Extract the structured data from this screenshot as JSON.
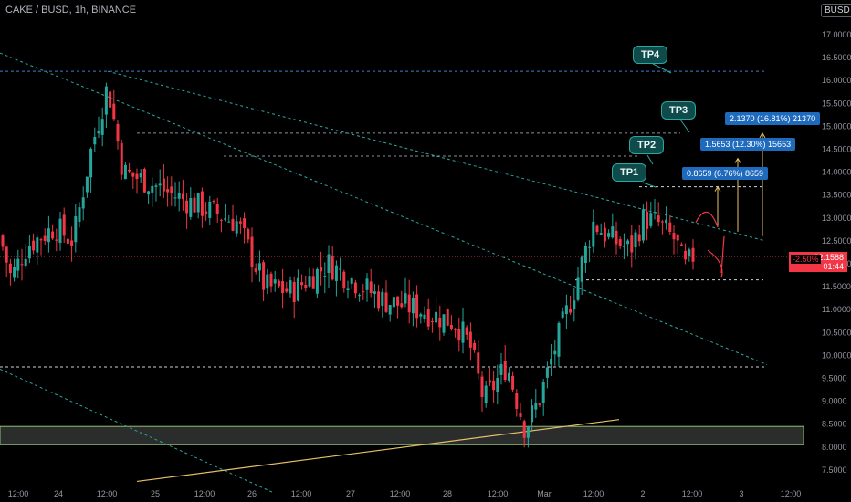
{
  "header": {
    "symbol_title": "CAKE / BUSD, 1h, BINANCE",
    "currency_badge": "BUSD"
  },
  "price_tag": {
    "price": "12.1588",
    "countdown": "01:44",
    "change": "-2.50%"
  },
  "targets": [
    {
      "label": "TP1",
      "level": 13.68
    },
    {
      "label": "TP2",
      "level": 14.35
    },
    {
      "label": "TP3",
      "level": 14.85
    },
    {
      "label": "TP4",
      "level": 16.2
    }
  ],
  "measurements": [
    {
      "text": "0.8659 (6.76%) 8659"
    },
    {
      "text": "1.5653 (12.30%) 15653"
    },
    {
      "text": "2.1370 (16.81%) 21370"
    }
  ],
  "colors": {
    "up": "#26a69a",
    "down": "#f23645",
    "measure_box": "#1e6bbd",
    "tp_bubble": "#0f4b4b",
    "support_zone": "#8fbf6f",
    "trendline_yellow": "#e6c06a"
  },
  "chart_data": {
    "type": "candlestick",
    "symbol": "CAKE / BUSD",
    "interval": "1h",
    "exchange": "BINANCE",
    "ylim": [
      7.2,
      17.3
    ],
    "y_ticks": [
      "17.0000",
      "16.5000",
      "16.0000",
      "15.5000",
      "15.0000",
      "14.5000",
      "14.0000",
      "13.5000",
      "13.0000",
      "12.5000",
      "12.0000",
      "11.5000",
      "11.0000",
      "10.5000",
      "10.0000",
      "9.5000",
      "9.0000",
      "8.5000",
      "8.0000",
      "7.5000"
    ],
    "x_ticks": [
      "12:00",
      "24",
      "12:00",
      "25",
      "12:00",
      "26",
      "12:00",
      "27",
      "12:00",
      "28",
      "12:00",
      "Mar",
      "12:00",
      "2",
      "12:00",
      "3",
      "12:00"
    ],
    "last_price": 12.1588,
    "horizontal_levels": [
      16.2,
      14.85,
      14.35,
      13.68,
      11.65,
      9.75
    ],
    "support_zone": [
      8.05,
      8.45
    ],
    "key_points": [
      {
        "label": "high",
        "time": "Feb 24 12:00",
        "price": 16.2
      },
      {
        "label": "low",
        "time": "Feb 28 14:00",
        "price": 8.1
      },
      {
        "label": "rebound",
        "time": "Mar 2 02:00",
        "price": 13.4
      }
    ]
  }
}
